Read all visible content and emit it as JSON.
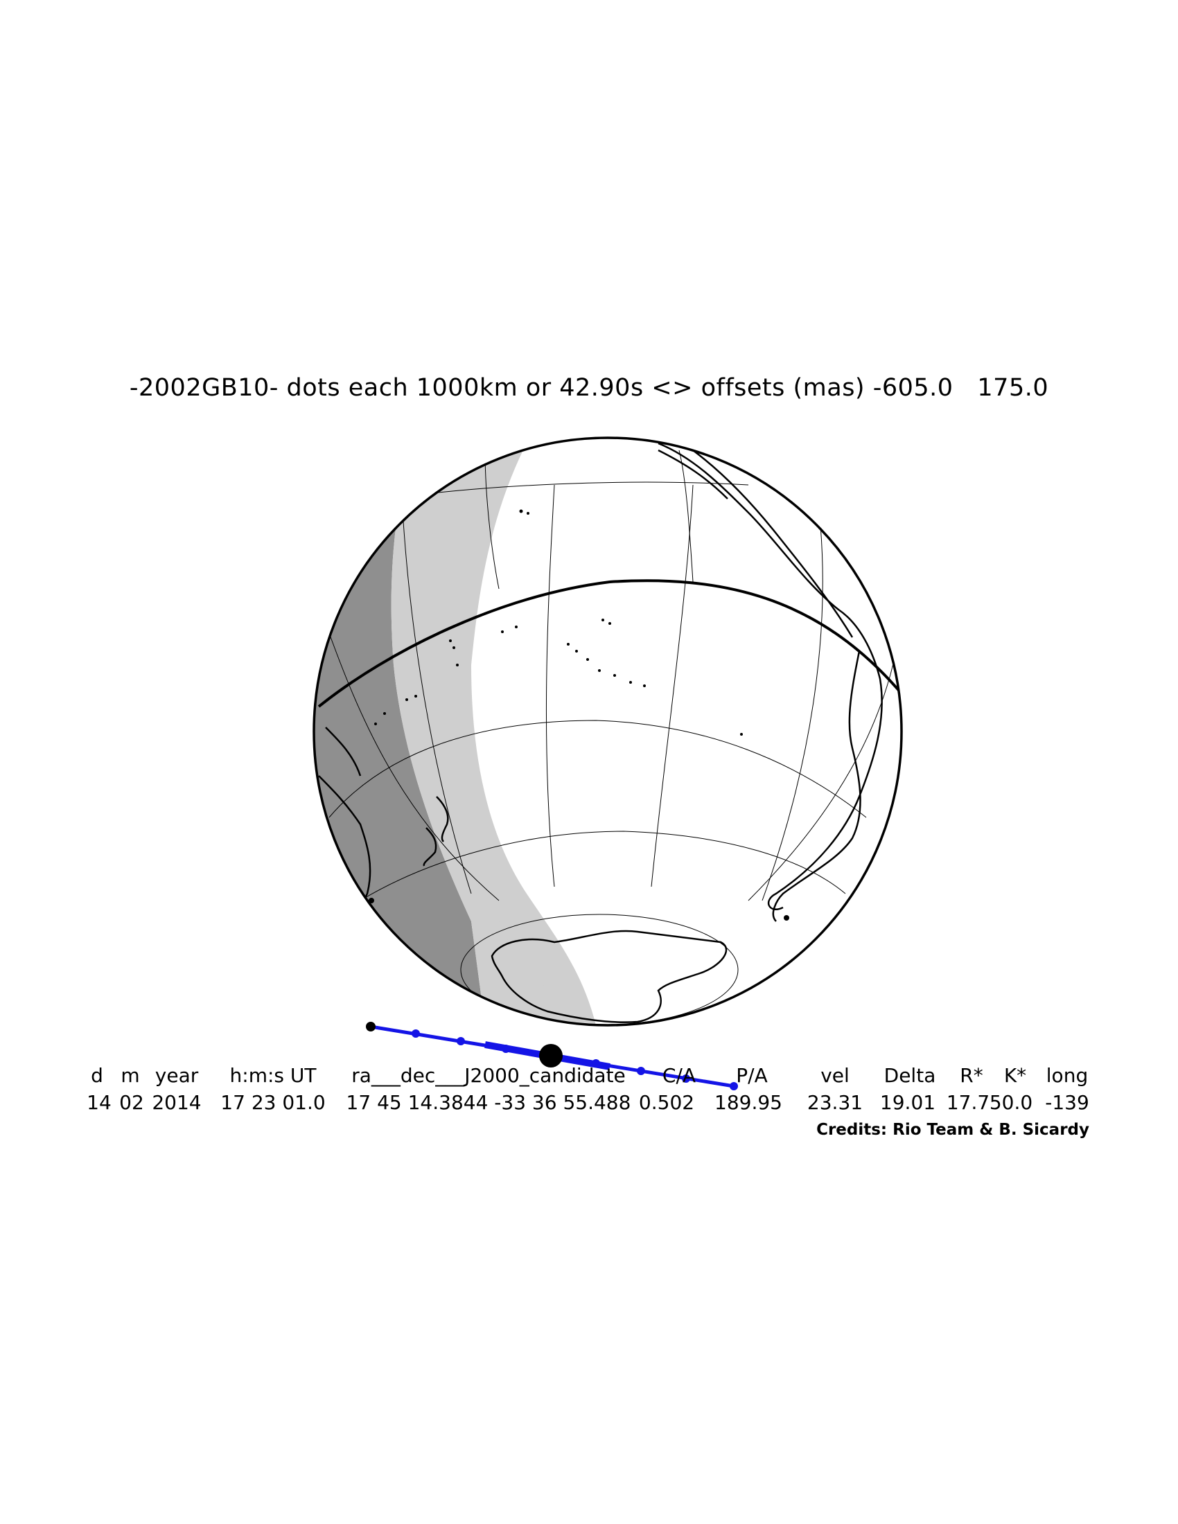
{
  "title": "-2002GB10- dots each 1000km or 42.90s <> offsets (mas) -605.0   175.0",
  "colors": {
    "shadow_dark": "#8f8f8f",
    "shadow_light": "#cfcfcf",
    "land": "#ffffff",
    "coast": "#000000",
    "track": "#1414e6",
    "grid": "#000000"
  },
  "map": {
    "projection": "orthographic",
    "features": [
      "graticule",
      "equator",
      "coastlines",
      "shadow-band-dark",
      "shadow-band-light",
      "occultation-track"
    ],
    "track_dots": 8
  },
  "table": {
    "headers": [
      "d",
      "m",
      "year",
      "h:m:s UT",
      "ra___dec___J2000_candidate",
      "C/A",
      "P/A",
      "vel",
      "Delta",
      "R*",
      "K*",
      "long"
    ],
    "values": [
      "14",
      "02",
      "2014",
      "17 23 01.0",
      "17 45 14.3844 -33 36 55.488",
      "0.502",
      "189.95",
      "23.31",
      "19.01",
      "17.7",
      "50.0",
      "-139"
    ]
  },
  "credits": "Credits: Rio Team & B. Sicardy"
}
